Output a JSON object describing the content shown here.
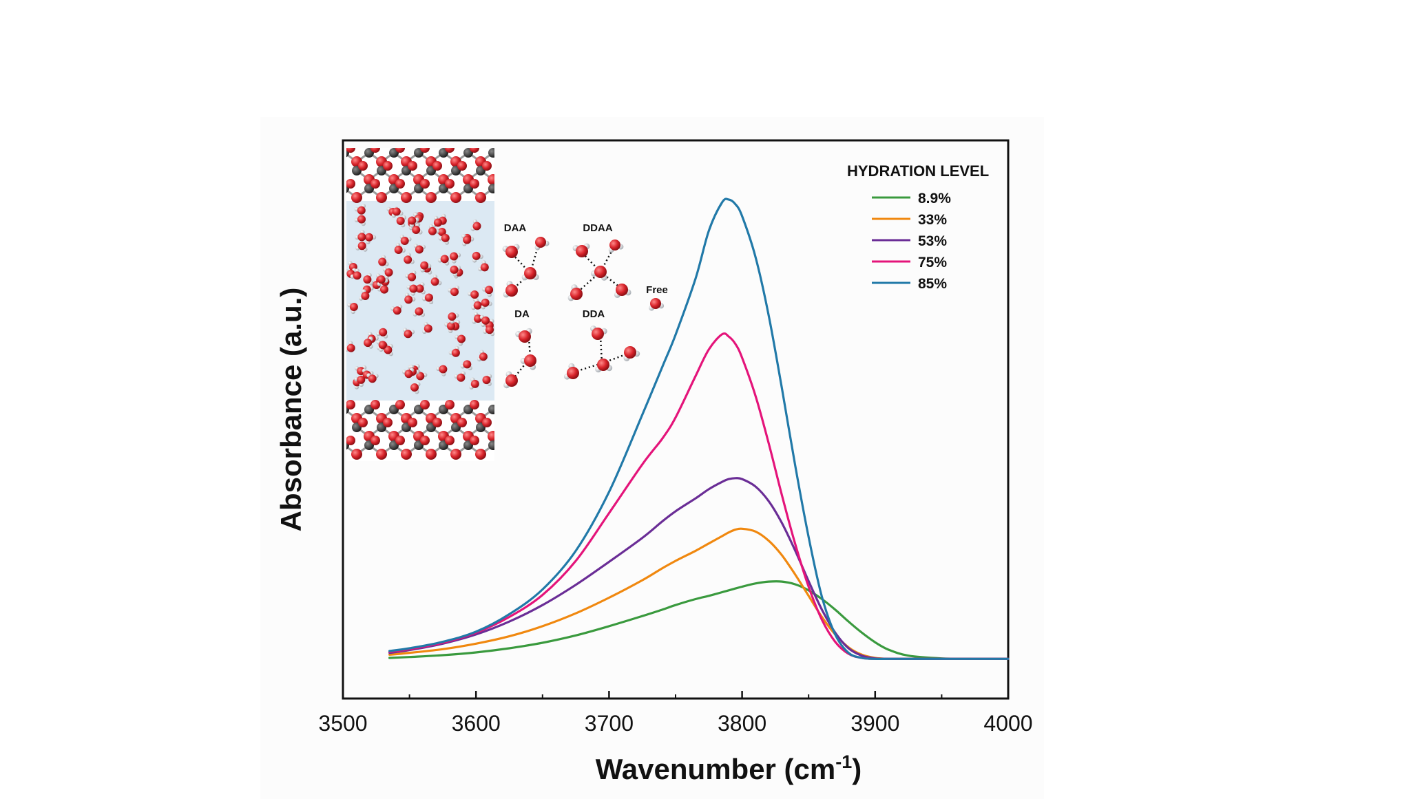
{
  "chart_data": {
    "type": "line",
    "xlabel_main": "Wavenumber (cm",
    "xlabel_sup": "-1",
    "xlabel_end": ")",
    "ylabel": "Absorbance (a.u.)",
    "xlim": [
      3500,
      4000
    ],
    "xticks": [
      "3500",
      "3600",
      "3700",
      "3800",
      "3900",
      "4000"
    ],
    "ylim": [
      0,
      1
    ],
    "y_ticklabels_shown": false,
    "grid": false,
    "legend": {
      "title": "HYDRATION LEVEL",
      "placement": "top-right"
    },
    "x": [
      3535,
      3550,
      3575,
      3600,
      3625,
      3650,
      3675,
      3700,
      3725,
      3740,
      3750,
      3765,
      3775,
      3785,
      3790,
      3795,
      3800,
      3810,
      3820,
      3830,
      3840,
      3850,
      3860,
      3870,
      3880,
      3890,
      3900,
      3910,
      3925,
      3950,
      3975,
      4000
    ],
    "series": [
      {
        "name": "8.9%",
        "color": "#3a9a3e",
        "values": [
          0.003,
          0.005,
          0.009,
          0.015,
          0.024,
          0.036,
          0.052,
          0.072,
          0.094,
          0.108,
          0.118,
          0.131,
          0.138,
          0.146,
          0.15,
          0.154,
          0.158,
          0.165,
          0.169,
          0.169,
          0.163,
          0.15,
          0.131,
          0.108,
          0.082,
          0.058,
          0.037,
          0.021,
          0.008,
          0.002,
          0.001,
          0.001
        ]
      },
      {
        "name": "33%",
        "color": "#f0880f",
        "values": [
          0.01,
          0.014,
          0.022,
          0.034,
          0.05,
          0.072,
          0.1,
          0.134,
          0.172,
          0.198,
          0.214,
          0.236,
          0.252,
          0.268,
          0.276,
          0.282,
          0.284,
          0.278,
          0.258,
          0.226,
          0.184,
          0.138,
          0.092,
          0.054,
          0.026,
          0.01,
          0.003,
          0.001,
          0.001,
          0.001,
          0.001,
          0.001
        ]
      },
      {
        "name": "53%",
        "color": "#6a2d96",
        "values": [
          0.014,
          0.02,
          0.034,
          0.054,
          0.082,
          0.118,
          0.162,
          0.212,
          0.264,
          0.3,
          0.322,
          0.35,
          0.37,
          0.386,
          0.392,
          0.394,
          0.392,
          0.376,
          0.344,
          0.296,
          0.236,
          0.17,
          0.108,
          0.058,
          0.024,
          0.008,
          0.002,
          0.001,
          0.001,
          0.001,
          0.001,
          0.001
        ]
      },
      {
        "name": "75%",
        "color": "#e4147a",
        "values": [
          0.016,
          0.022,
          0.036,
          0.058,
          0.092,
          0.14,
          0.214,
          0.318,
          0.424,
          0.48,
          0.526,
          0.616,
          0.674,
          0.707,
          0.702,
          0.686,
          0.656,
          0.574,
          0.47,
          0.356,
          0.25,
          0.158,
          0.086,
          0.038,
          0.012,
          0.003,
          0.001,
          0.001,
          0.001,
          0.001,
          0.001,
          0.001
        ]
      },
      {
        "name": "85%",
        "color": "#2179a8",
        "values": [
          0.018,
          0.024,
          0.038,
          0.06,
          0.098,
          0.152,
          0.236,
          0.364,
          0.532,
          0.636,
          0.706,
          0.828,
          0.932,
          0.994,
          1.0,
          0.99,
          0.964,
          0.876,
          0.748,
          0.588,
          0.42,
          0.266,
          0.136,
          0.054,
          0.014,
          0.003,
          0.001,
          0.001,
          0.001,
          0.001,
          0.001,
          0.001
        ]
      }
    ]
  },
  "inset": {
    "molecule_labels": [
      "DAA",
      "DDAA",
      "Free",
      "DA",
      "DDA"
    ],
    "colors": {
      "oxygen": "#d8232a",
      "hydrogen": "#cfd3d8",
      "metal": "#3b3b3b",
      "water_bg": "#dce9f3"
    }
  }
}
